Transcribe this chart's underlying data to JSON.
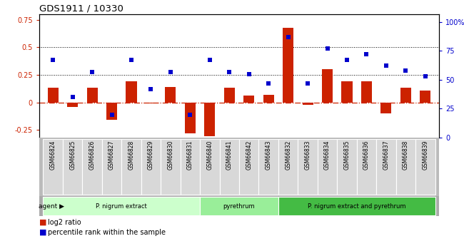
{
  "title": "GDS1911 / 10330",
  "samples": [
    "GSM66824",
    "GSM66825",
    "GSM66826",
    "GSM66827",
    "GSM66828",
    "GSM66829",
    "GSM66830",
    "GSM66831",
    "GSM66840",
    "GSM66841",
    "GSM66842",
    "GSM66843",
    "GSM66832",
    "GSM66833",
    "GSM66834",
    "GSM66835",
    "GSM66836",
    "GSM66837",
    "GSM66838",
    "GSM66839"
  ],
  "log2_ratio": [
    0.13,
    -0.04,
    0.13,
    -0.16,
    0.19,
    -0.01,
    0.14,
    -0.28,
    -0.31,
    0.13,
    0.06,
    0.07,
    0.68,
    -0.02,
    0.3,
    0.19,
    0.19,
    -0.1,
    0.13,
    0.11
  ],
  "percentile": [
    67,
    35,
    57,
    20,
    67,
    42,
    57,
    20,
    67,
    57,
    55,
    47,
    87,
    47,
    77,
    67,
    72,
    62,
    58,
    53
  ],
  "bar_color": "#cc2200",
  "dot_color": "#0000cc",
  "bg_label_color": "#bbbbbb",
  "ylim_left": [
    -0.32,
    0.8
  ],
  "ylim_right": [
    0.0,
    106.67
  ],
  "yticks_left": [
    -0.25,
    0.0,
    0.25,
    0.5,
    0.75
  ],
  "yticks_right": [
    0,
    25,
    50,
    75,
    100
  ],
  "hlines": [
    0.25,
    0.5
  ],
  "groups": [
    {
      "label": "P. nigrum extract",
      "start": 0,
      "end": 8,
      "color": "#ccffcc"
    },
    {
      "label": "pyrethrum",
      "start": 8,
      "end": 12,
      "color": "#99ee99"
    },
    {
      "label": "P. nigrum extract and pyrethrum",
      "start": 12,
      "end": 20,
      "color": "#44bb44"
    }
  ],
  "bar_width": 0.55,
  "legend_bar_label": "log2 ratio",
  "legend_dot_label": "percentile rank within the sample",
  "agent_label": "agent"
}
